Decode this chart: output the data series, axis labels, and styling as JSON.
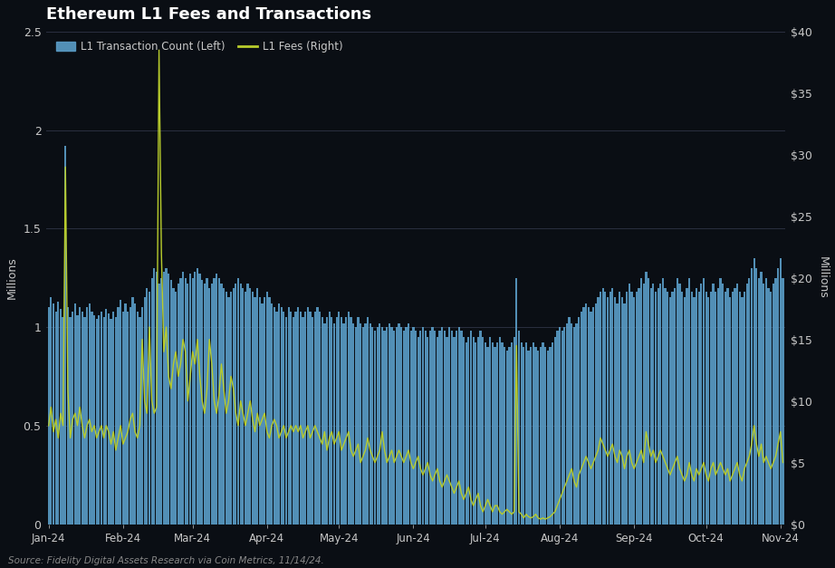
{
  "title": "Ethereum L1 Fees and Transactions",
  "legend_bar": "L1 Transaction Count (Left)",
  "legend_line": "L1 Fees (Right)",
  "ylabel_left": "Millions",
  "ylabel_right": "Millions",
  "source_text": "Source: Fidelity Digital Assets Research via Coin Metrics, 11/14/24.",
  "background_color": "#0a0e14",
  "bar_color": "#5b9ec9",
  "line_color": "#b8cc2c",
  "ylim_left": [
    0,
    2.5
  ],
  "ylim_right": [
    0,
    40
  ],
  "yticks_left": [
    0,
    0.5,
    1.0,
    1.5,
    2.0,
    2.5
  ],
  "yticks_right": [
    0,
    5,
    10,
    15,
    20,
    25,
    30,
    35,
    40
  ],
  "x_labels": [
    "Jan-24",
    "Feb-24",
    "Mar-24",
    "Apr-24",
    "May-24",
    "Jun-24",
    "Jul-24",
    "Aug-24",
    "Sep-24",
    "Oct-24",
    "Nov-24"
  ],
  "x_label_days": [
    0,
    31,
    60,
    91,
    121,
    152,
    182,
    213,
    244,
    274,
    305
  ],
  "bar_values": [
    1.1,
    1.15,
    1.12,
    1.08,
    1.13,
    1.09,
    1.05,
    1.92,
    1.1,
    1.05,
    1.08,
    1.12,
    1.06,
    1.1,
    1.08,
    1.05,
    1.1,
    1.12,
    1.08,
    1.06,
    1.04,
    1.06,
    1.08,
    1.05,
    1.09,
    1.07,
    1.04,
    1.08,
    1.05,
    1.1,
    1.14,
    1.08,
    1.12,
    1.08,
    1.1,
    1.15,
    1.12,
    1.08,
    1.05,
    1.1,
    1.15,
    1.2,
    1.18,
    1.25,
    1.3,
    1.28,
    1.22,
    1.25,
    1.28,
    1.3,
    1.27,
    1.24,
    1.2,
    1.18,
    1.22,
    1.25,
    1.28,
    1.25,
    1.22,
    1.27,
    1.25,
    1.28,
    1.3,
    1.27,
    1.24,
    1.22,
    1.25,
    1.2,
    1.22,
    1.25,
    1.27,
    1.25,
    1.22,
    1.2,
    1.18,
    1.15,
    1.18,
    1.2,
    1.22,
    1.25,
    1.22,
    1.2,
    1.18,
    1.22,
    1.2,
    1.18,
    1.15,
    1.2,
    1.15,
    1.12,
    1.15,
    1.18,
    1.15,
    1.12,
    1.1,
    1.08,
    1.12,
    1.1,
    1.08,
    1.05,
    1.1,
    1.08,
    1.05,
    1.08,
    1.1,
    1.08,
    1.05,
    1.08,
    1.1,
    1.08,
    1.05,
    1.08,
    1.1,
    1.08,
    1.05,
    1.02,
    1.05,
    1.08,
    1.05,
    1.02,
    1.05,
    1.08,
    1.05,
    1.02,
    1.05,
    1.08,
    1.05,
    1.02,
    1.0,
    1.05,
    1.02,
    1.0,
    1.02,
    1.05,
    1.02,
    1.0,
    0.98,
    1.0,
    1.02,
    1.0,
    0.98,
    1.0,
    1.02,
    1.0,
    0.98,
    1.0,
    1.02,
    1.0,
    0.98,
    1.0,
    1.02,
    0.98,
    1.0,
    0.98,
    0.95,
    0.98,
    1.0,
    0.98,
    0.95,
    0.98,
    1.0,
    0.98,
    0.95,
    0.98,
    1.0,
    0.98,
    0.95,
    1.0,
    0.98,
    0.95,
    0.98,
    1.0,
    0.98,
    0.95,
    0.92,
    0.95,
    0.98,
    0.95,
    0.92,
    0.95,
    0.98,
    0.95,
    0.92,
    0.9,
    0.95,
    0.92,
    0.9,
    0.92,
    0.95,
    0.92,
    0.9,
    0.88,
    0.9,
    0.92,
    0.95,
    1.25,
    0.98,
    0.92,
    0.9,
    0.92,
    0.88,
    0.9,
    0.92,
    0.9,
    0.88,
    0.9,
    0.92,
    0.9,
    0.88,
    0.9,
    0.92,
    0.95,
    0.98,
    1.0,
    0.98,
    1.0,
    1.02,
    1.05,
    1.02,
    1.0,
    1.02,
    1.05,
    1.08,
    1.1,
    1.12,
    1.1,
    1.08,
    1.1,
    1.12,
    1.15,
    1.18,
    1.2,
    1.18,
    1.15,
    1.18,
    1.2,
    1.15,
    1.12,
    1.18,
    1.15,
    1.12,
    1.18,
    1.22,
    1.18,
    1.15,
    1.18,
    1.2,
    1.25,
    1.22,
    1.28,
    1.25,
    1.2,
    1.22,
    1.18,
    1.2,
    1.22,
    1.25,
    1.2,
    1.18,
    1.15,
    1.18,
    1.2,
    1.25,
    1.22,
    1.18,
    1.15,
    1.2,
    1.25,
    1.18,
    1.15,
    1.2,
    1.18,
    1.22,
    1.25,
    1.18,
    1.15,
    1.18,
    1.22,
    1.18,
    1.2,
    1.25,
    1.22,
    1.18,
    1.2,
    1.15,
    1.18,
    1.2,
    1.22,
    1.18,
    1.15,
    1.18,
    1.22,
    1.25,
    1.3,
    1.35,
    1.3,
    1.25,
    1.28,
    1.22,
    1.25,
    1.2,
    1.18,
    1.22,
    1.25,
    1.3,
    1.35,
    1.25
  ],
  "fee_values": [
    8.0,
    9.5,
    7.5,
    8.5,
    7.0,
    9.0,
    8.0,
    29.0,
    11.0,
    7.0,
    8.5,
    9.0,
    8.0,
    9.5,
    8.0,
    7.0,
    8.0,
    8.5,
    7.5,
    8.0,
    7.0,
    7.5,
    8.0,
    7.0,
    8.0,
    7.5,
    6.5,
    7.5,
    6.0,
    7.0,
    8.0,
    6.5,
    7.0,
    7.5,
    8.5,
    9.0,
    7.5,
    7.0,
    8.0,
    15.0,
    10.0,
    9.0,
    16.0,
    10.0,
    9.0,
    9.5,
    38.5,
    22.0,
    14.0,
    16.0,
    12.0,
    11.0,
    13.0,
    14.0,
    12.0,
    13.0,
    15.0,
    14.0,
    10.0,
    12.0,
    14.0,
    13.0,
    15.0,
    12.0,
    10.0,
    9.0,
    11.0,
    15.0,
    13.0,
    10.0,
    9.0,
    10.5,
    13.0,
    11.0,
    9.0,
    10.0,
    12.0,
    11.0,
    9.0,
    8.0,
    10.0,
    9.0,
    8.0,
    9.0,
    10.0,
    8.5,
    7.5,
    9.0,
    8.0,
    8.5,
    9.0,
    7.5,
    7.0,
    8.0,
    8.5,
    8.0,
    7.0,
    7.5,
    8.0,
    7.0,
    7.5,
    8.0,
    7.5,
    8.0,
    7.5,
    8.0,
    7.0,
    7.5,
    8.0,
    7.0,
    7.5,
    8.0,
    7.5,
    7.0,
    6.5,
    7.5,
    6.0,
    7.0,
    7.5,
    6.5,
    7.0,
    7.5,
    6.0,
    6.5,
    7.0,
    7.5,
    6.0,
    5.5,
    6.0,
    6.5,
    5.0,
    5.5,
    6.0,
    7.0,
    6.0,
    5.5,
    5.0,
    5.5,
    6.0,
    7.5,
    6.0,
    5.0,
    5.5,
    6.0,
    5.0,
    5.5,
    6.0,
    5.5,
    5.0,
    5.5,
    6.0,
    5.0,
    4.5,
    5.0,
    5.5,
    4.5,
    4.0,
    4.5,
    5.0,
    4.0,
    3.5,
    4.0,
    4.5,
    3.5,
    3.0,
    3.5,
    4.0,
    3.5,
    3.0,
    2.5,
    3.0,
    3.5,
    2.5,
    2.0,
    2.5,
    3.0,
    2.0,
    1.5,
    2.0,
    2.5,
    1.5,
    1.0,
    1.5,
    2.0,
    1.5,
    1.0,
    1.5,
    1.5,
    1.0,
    0.8,
    1.0,
    1.2,
    1.0,
    0.8,
    1.0,
    14.5,
    1.0,
    0.8,
    0.5,
    0.8,
    0.6,
    0.5,
    0.6,
    0.8,
    0.5,
    0.4,
    0.5,
    0.4,
    0.5,
    0.6,
    0.8,
    1.0,
    1.5,
    2.0,
    2.5,
    3.0,
    3.5,
    4.0,
    4.5,
    3.5,
    3.0,
    4.0,
    4.5,
    5.0,
    5.5,
    5.0,
    4.5,
    5.0,
    5.5,
    6.0,
    7.0,
    6.5,
    6.0,
    5.5,
    6.0,
    6.5,
    5.5,
    5.0,
    6.0,
    5.5,
    4.5,
    5.5,
    6.0,
    5.0,
    4.5,
    5.0,
    5.5,
    6.0,
    5.0,
    7.5,
    6.5,
    5.5,
    6.0,
    5.0,
    5.5,
    6.0,
    5.5,
    5.0,
    4.5,
    4.0,
    4.5,
    5.0,
    5.5,
    4.5,
    4.0,
    3.5,
    4.0,
    5.0,
    4.0,
    3.5,
    4.5,
    4.0,
    4.5,
    5.0,
    4.0,
    3.5,
    4.5,
    5.0,
    4.0,
    4.5,
    5.0,
    4.5,
    4.0,
    4.5,
    3.5,
    4.0,
    4.5,
    5.0,
    4.0,
    3.5,
    4.5,
    5.0,
    5.5,
    6.5,
    8.0,
    6.5,
    5.5,
    6.5,
    5.0,
    5.5,
    5.0,
    4.5,
    5.0,
    5.5,
    6.5,
    7.5,
    5.0
  ]
}
